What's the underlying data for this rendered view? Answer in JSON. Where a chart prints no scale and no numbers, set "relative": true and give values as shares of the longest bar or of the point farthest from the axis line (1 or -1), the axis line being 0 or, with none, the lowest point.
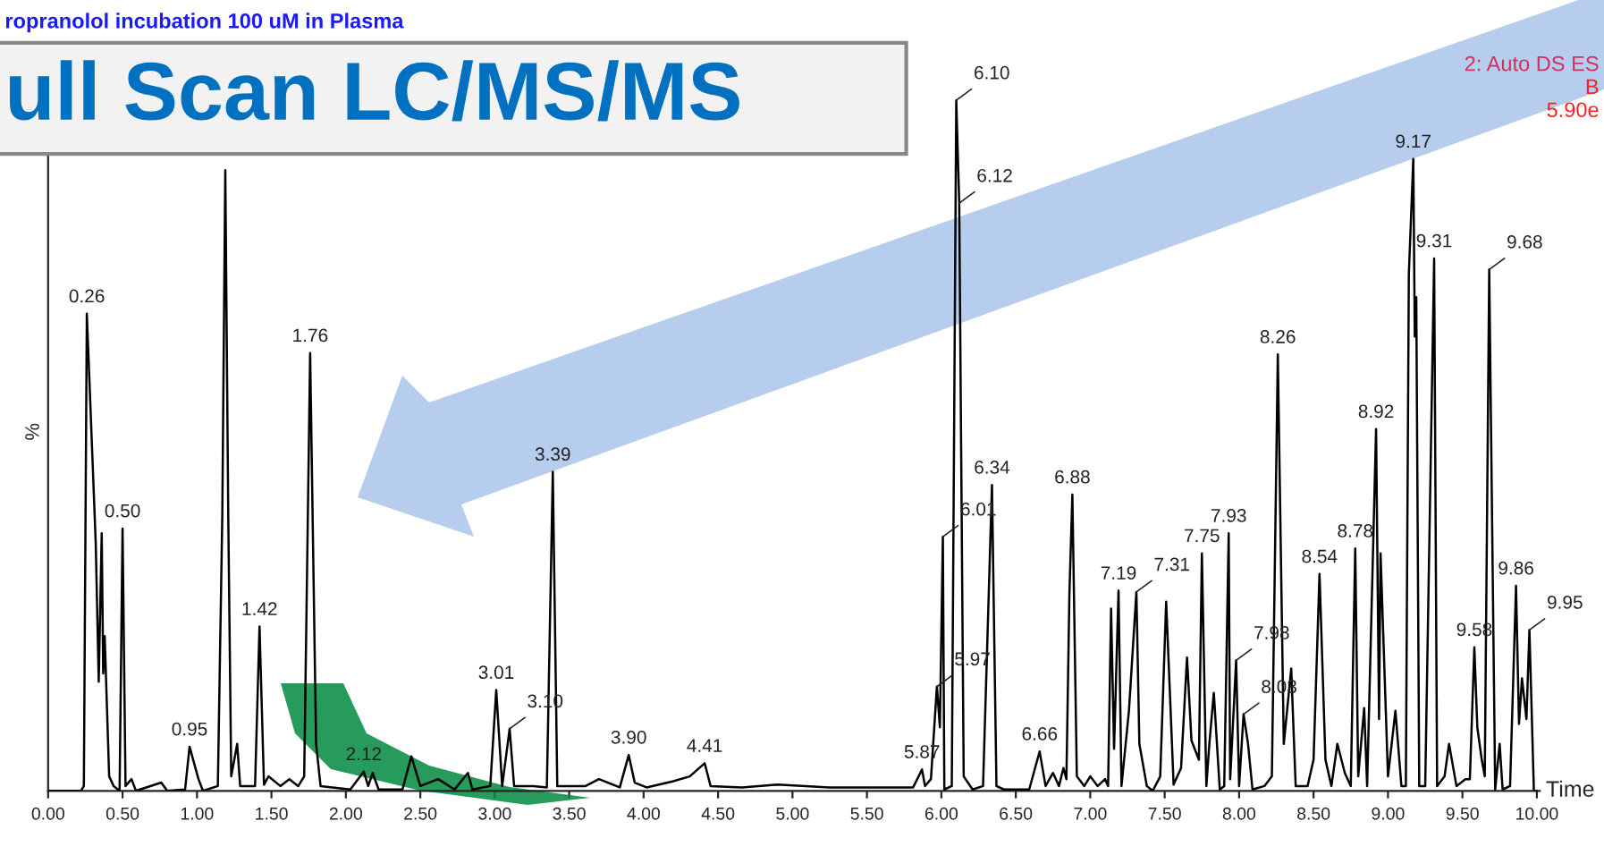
{
  "chart_data": {
    "type": "line",
    "relative": true,
    "title": "ull Scan LC/MS/MS",
    "subtitle": "ropranolol incubation 100 uM in Plasma",
    "xlabel": "Time",
    "ylabel": "%",
    "xlim": [
      0,
      10.02
    ],
    "xticks": [
      {
        "value": 0,
        "label": "0.00"
      },
      {
        "value": 0.5,
        "label": "0.50"
      },
      {
        "value": 1,
        "label": "1.00"
      },
      {
        "value": 1.5,
        "label": "1.50"
      },
      {
        "value": 2,
        "label": "2.00"
      },
      {
        "value": 2.5,
        "label": "2.50"
      },
      {
        "value": 3,
        "label": "3.00"
      },
      {
        "value": 3.5,
        "label": "3.50"
      },
      {
        "value": 4,
        "label": "4.00"
      },
      {
        "value": 4.5,
        "label": "4.50"
      },
      {
        "value": 5,
        "label": "5.00"
      },
      {
        "value": 5.5,
        "label": "5.50"
      },
      {
        "value": 6,
        "label": "6.00"
      },
      {
        "value": 6.5,
        "label": "6.50"
      },
      {
        "value": 7,
        "label": "7.00"
      },
      {
        "value": 7.5,
        "label": "7.50"
      },
      {
        "value": 8,
        "label": "8.00"
      },
      {
        "value": 8.5,
        "label": "8.50"
      },
      {
        "value": 9,
        "label": "9.00"
      },
      {
        "value": 9.5,
        "label": "9.50"
      },
      {
        "value": 10,
        "label": "10.00"
      }
    ],
    "grid": false,
    "series": [
      {
        "color": "#000000",
        "x": [
          0.01,
          0.22,
          0.24,
          0.26,
          0.32,
          0.34,
          0.36,
          0.37,
          0.38,
          0.41,
          0.44,
          0.48,
          0.5,
          0.52,
          0.56,
          0.59,
          0.76,
          0.8,
          0.92,
          0.95,
          1.01,
          1.04,
          1.14,
          1.17,
          1.19,
          1.21,
          1.23,
          1.27,
          1.29,
          1.39,
          1.42,
          1.45,
          1.48,
          1.56,
          1.62,
          1.68,
          1.72,
          1.76,
          1.8,
          1.83,
          2.03,
          2.12,
          2.15,
          2.18,
          2.22,
          2.38,
          2.44,
          2.5,
          2.62,
          2.73,
          2.82,
          2.85,
          2.97,
          3.01,
          3.05,
          3.1,
          3.13,
          3.26,
          3.35,
          3.39,
          3.42,
          3.61,
          3.7,
          3.84,
          3.9,
          3.94,
          4.02,
          4.2,
          4.31,
          4.41,
          4.45,
          4.66,
          4.9,
          5.25,
          5.6,
          5.81,
          5.87,
          5.89,
          5.93,
          5.97,
          5.99,
          6.01,
          6.02,
          6.07,
          6.1,
          6.12,
          6.15,
          6.21,
          6.28,
          6.34,
          6.37,
          6.42,
          6.59,
          6.66,
          6.7,
          6.75,
          6.79,
          6.82,
          6.84,
          6.86,
          6.88,
          6.91,
          6.96,
          7.0,
          7.05,
          7.1,
          7.12,
          7.14,
          7.16,
          7.19,
          7.21,
          7.26,
          7.31,
          7.33,
          7.38,
          7.42,
          7.47,
          7.51,
          7.54,
          7.56,
          7.61,
          7.65,
          7.68,
          7.73,
          7.75,
          7.78,
          7.8,
          7.83,
          7.87,
          7.9,
          7.93,
          7.94,
          7.98,
          8.0,
          8.03,
          8.06,
          8.09,
          8.17,
          8.22,
          8.26,
          8.3,
          8.35,
          8.38,
          8.46,
          8.5,
          8.54,
          8.58,
          8.62,
          8.66,
          8.71,
          8.75,
          8.78,
          8.8,
          8.84,
          8.86,
          8.92,
          8.94,
          8.95,
          9.0,
          9.05,
          9.09,
          9.12,
          9.14,
          9.17,
          9.18,
          9.19,
          9.21,
          9.25,
          9.31,
          9.33,
          9.38,
          9.41,
          9.46,
          9.52,
          9.55,
          9.58,
          9.6,
          9.63,
          9.65,
          9.68,
          9.72,
          9.75,
          9.77,
          9.82,
          9.86,
          9.88,
          9.9,
          9.93,
          9.95,
          9.98,
          10.0
        ],
        "values": [
          0,
          0,
          0.007,
          0.691,
          0.358,
          0.158,
          0.373,
          0.17,
          0.224,
          0.021,
          0.007,
          0,
          0.38,
          0.007,
          0.017,
          0,
          0.012,
          0,
          0.002,
          0.064,
          0.017,
          0,
          0.007,
          0.399,
          0.899,
          0.399,
          0.021,
          0.068,
          0.007,
          0.007,
          0.238,
          0.009,
          0.021,
          0.007,
          0.017,
          0.007,
          0.021,
          0.634,
          0.068,
          0.007,
          0.002,
          0.028,
          0.007,
          0.026,
          0.002,
          0.002,
          0.05,
          0.007,
          0.017,
          0.002,
          0.026,
          0.002,
          0.007,
          0.146,
          0.007,
          0.09,
          0.007,
          0.007,
          0.005,
          0.462,
          0.007,
          0.007,
          0.017,
          0.005,
          0.052,
          0.012,
          0.005,
          0.014,
          0.021,
          0.04,
          0.007,
          0.005,
          0.009,
          0.005,
          0.005,
          0.005,
          0.031,
          0.007,
          0.017,
          0.151,
          0.092,
          0.368,
          0.002,
          0.007,
          1.0,
          0.851,
          0.021,
          0.002,
          0.007,
          0.443,
          0.007,
          0.002,
          0.002,
          0.057,
          0.007,
          0.026,
          0.007,
          0.033,
          0.017,
          0.285,
          0.429,
          0.021,
          0.007,
          0.021,
          0.007,
          0.017,
          0.007,
          0.264,
          0.061,
          0.29,
          0.007,
          0.116,
          0.288,
          0.068,
          0.007,
          0,
          0.021,
          0.274,
          0.116,
          0.009,
          0.033,
          0.193,
          0.073,
          0.045,
          0.344,
          0.007,
          0.068,
          0.142,
          0.002,
          0.007,
          0.373,
          0.017,
          0.189,
          0.007,
          0.111,
          0.068,
          0.002,
          0.007,
          0.021,
          0.632,
          0.068,
          0.177,
          0.007,
          0.007,
          0.045,
          0.314,
          0.045,
          0.007,
          0.068,
          0.026,
          0.007,
          0.351,
          0.021,
          0.12,
          0.007,
          0.524,
          0.104,
          0.344,
          0.021,
          0.116,
          0.007,
          0.007,
          0.748,
          0.915,
          0.658,
          0.715,
          0.007,
          0.007,
          0.771,
          0.007,
          0.021,
          0.068,
          0.007,
          0.017,
          0.017,
          0.208,
          0.092,
          0.045,
          0.021,
          0.755,
          0.002,
          0.068,
          0.002,
          0.007,
          0.297,
          0.097,
          0.163,
          0.104,
          0.233,
          0,
          0
        ]
      }
    ],
    "annotations": [
      {
        "text": "0.26",
        "x": 0.26,
        "y": 0.691
      },
      {
        "text": "0.50",
        "x": 0.5,
        "y": 0.38
      },
      {
        "text": "0.95",
        "x": 0.95,
        "y": 0.064
      },
      {
        "text": "1.42",
        "x": 1.42,
        "y": 0.238
      },
      {
        "text": "1.76",
        "x": 1.76,
        "y": 0.634
      },
      {
        "text": "2.12",
        "x": 2.12,
        "y": 0.028
      },
      {
        "text": "3.01",
        "x": 3.01,
        "y": 0.146
      },
      {
        "text": "3.10",
        "x": 3.1,
        "y": 0.09
      },
      {
        "text": "3.39",
        "x": 3.39,
        "y": 0.462
      },
      {
        "text": "3.90",
        "x": 3.9,
        "y": 0.052
      },
      {
        "text": "4.41",
        "x": 4.41,
        "y": 0.04
      },
      {
        "text": "5.87",
        "x": 5.87,
        "y": 0.031
      },
      {
        "text": "5.97",
        "x": 5.97,
        "y": 0.151
      },
      {
        "text": "6.01",
        "x": 6.01,
        "y": 0.368
      },
      {
        "text": "6.10",
        "x": 6.1,
        "y": 1.0
      },
      {
        "text": "6.12",
        "x": 6.12,
        "y": 0.851
      },
      {
        "text": "6.34",
        "x": 6.34,
        "y": 0.443
      },
      {
        "text": "6.66",
        "x": 6.66,
        "y": 0.057
      },
      {
        "text": "6.88",
        "x": 6.88,
        "y": 0.429
      },
      {
        "text": "7.19",
        "x": 7.19,
        "y": 0.29
      },
      {
        "text": "7.31",
        "x": 7.31,
        "y": 0.288
      },
      {
        "text": "7.75",
        "x": 7.75,
        "y": 0.344
      },
      {
        "text": "7.93",
        "x": 7.93,
        "y": 0.373
      },
      {
        "text": "7.98",
        "x": 7.98,
        "y": 0.189
      },
      {
        "text": "8.03",
        "x": 8.03,
        "y": 0.111
      },
      {
        "text": "8.26",
        "x": 8.26,
        "y": 0.632
      },
      {
        "text": "8.54",
        "x": 8.54,
        "y": 0.314
      },
      {
        "text": "8.78",
        "x": 8.78,
        "y": 0.351
      },
      {
        "text": "8.92",
        "x": 8.92,
        "y": 0.524
      },
      {
        "text": "9.17",
        "x": 9.17,
        "y": 0.915
      },
      {
        "text": "9.31",
        "x": 9.31,
        "y": 0.771
      },
      {
        "text": "9.58",
        "x": 9.58,
        "y": 0.208
      },
      {
        "text": "9.68",
        "x": 9.68,
        "y": 0.755
      },
      {
        "text": "9.86",
        "x": 9.86,
        "y": 0.297
      },
      {
        "text": "9.95",
        "x": 9.95,
        "y": 0.233
      },
      "2: Auto DS ES",
      "B",
      "5.90e"
    ]
  }
}
